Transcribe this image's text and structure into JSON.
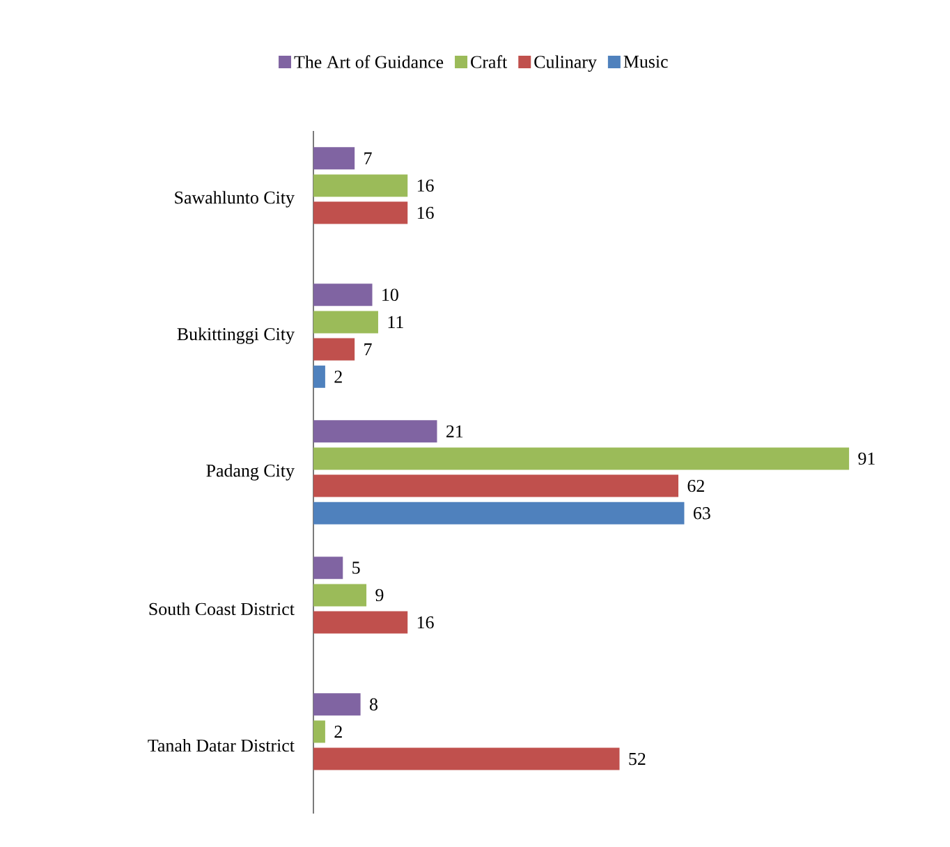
{
  "chart_data": {
    "type": "bar",
    "orientation": "horizontal",
    "categories": [
      "Sawahlunto City",
      "Bukittinggi City",
      "Padang City",
      "South Coast District",
      "Tanah Datar District"
    ],
    "series": [
      {
        "name": "The Art of Guidance",
        "color": "#8064a2",
        "values": [
          7,
          10,
          21,
          5,
          8
        ]
      },
      {
        "name": "Craft",
        "color": "#9bbb59",
        "values": [
          16,
          11,
          91,
          9,
          2
        ]
      },
      {
        "name": "Culinary",
        "color": "#c0504d",
        "values": [
          16,
          7,
          62,
          16,
          52
        ]
      },
      {
        "name": "Music",
        "color": "#4f81bd",
        "values": [
          null,
          2,
          63,
          null,
          null
        ]
      }
    ],
    "data_labels": true,
    "legend": "top",
    "tick_labels": "y"
  }
}
